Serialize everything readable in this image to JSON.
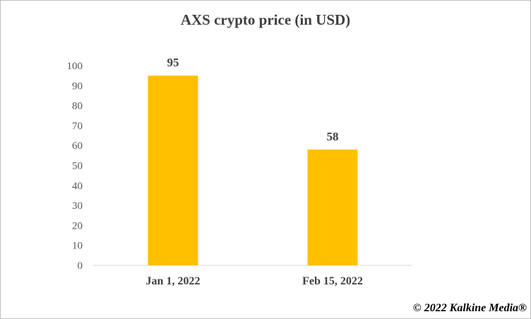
{
  "chart_data": {
    "type": "bar",
    "title": "AXS  crypto price (in USD)",
    "categories": [
      "Jan 1, 2022",
      "Feb 15, 2022"
    ],
    "values": [
      95,
      58
    ],
    "ylim": [
      0,
      100
    ],
    "yticks": [
      0,
      10,
      20,
      30,
      40,
      50,
      60,
      70,
      80,
      90,
      100
    ],
    "xlabel": "",
    "ylabel": "",
    "grid": false,
    "legend": "none",
    "data_labels": true,
    "bar_color": "#FFC000"
  },
  "footer": {
    "copyright": "© 2022 Kalkine Media®"
  }
}
